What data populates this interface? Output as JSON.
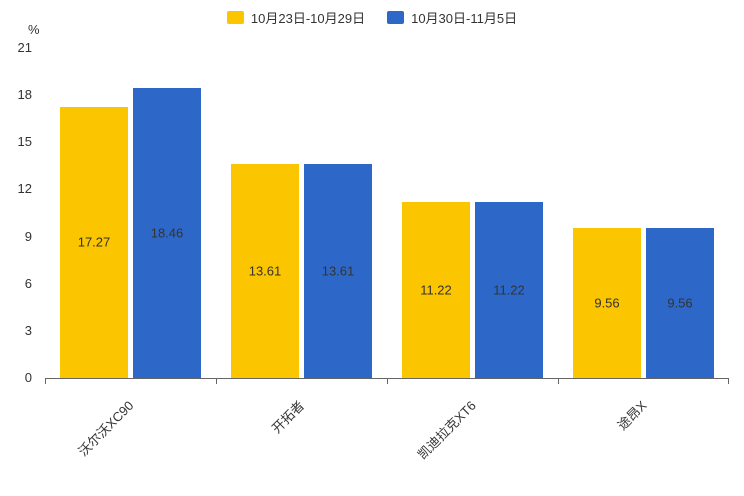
{
  "chart_data": {
    "type": "bar",
    "categories": [
      "沃尔沃XC90",
      "开拓者",
      "凯迪拉克XT6",
      "途昂X"
    ],
    "series": [
      {
        "name": "10月23日-10月29日",
        "color": "#FBC500",
        "values": [
          17.27,
          13.61,
          11.22,
          9.56
        ]
      },
      {
        "name": "10月30日-11月5日",
        "color": "#2D68C9",
        "values": [
          18.46,
          13.61,
          11.22,
          9.56
        ]
      }
    ],
    "title": "",
    "xlabel": "",
    "ylabel": "%",
    "ylim": [
      0,
      21
    ],
    "yticks": [
      0,
      3,
      6,
      9,
      12,
      15,
      18,
      21
    ],
    "legend_position": "top",
    "grid": false,
    "value_label_decimals": 2,
    "text_color": "#333333",
    "axis_color": "#666666",
    "background_color": "#ffffff"
  }
}
